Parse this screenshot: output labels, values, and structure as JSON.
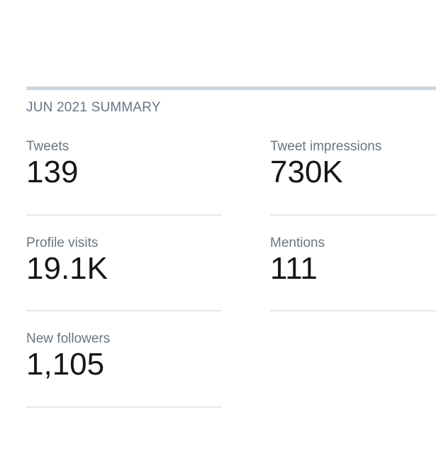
{
  "summary": {
    "heading": "JUN 2021 SUMMARY",
    "stats": [
      {
        "label": "Tweets",
        "value": "139"
      },
      {
        "label": "Tweet impressions",
        "value": "730K"
      },
      {
        "label": "Profile visits",
        "value": "19.1K"
      },
      {
        "label": "Mentions",
        "value": "111"
      },
      {
        "label": "New followers",
        "value": "1,105"
      }
    ]
  },
  "colors": {
    "label": "#657786",
    "value": "#14171a",
    "divider": "#e1e8ed",
    "top_bar": "#ccd6dd"
  }
}
